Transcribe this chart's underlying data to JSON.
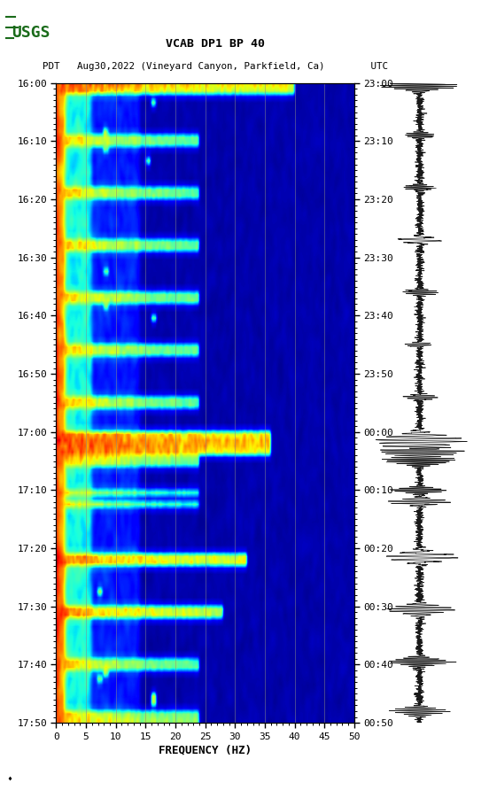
{
  "title_line1": "VCAB DP1 BP 40",
  "title_line2": "PDT   Aug30,2022 (Vineyard Canyon, Parkfield, Ca)        UTC",
  "xlabel": "FREQUENCY (HZ)",
  "freq_min": 0,
  "freq_max": 50,
  "freq_ticks": [
    0,
    5,
    10,
    15,
    20,
    25,
    30,
    35,
    40,
    45,
    50
  ],
  "time_labels_left": [
    "16:00",
    "16:10",
    "16:20",
    "16:30",
    "16:40",
    "16:50",
    "17:00",
    "17:10",
    "17:20",
    "17:30",
    "17:40",
    "17:50"
  ],
  "time_labels_right": [
    "23:00",
    "23:10",
    "23:20",
    "23:30",
    "23:40",
    "23:50",
    "00:00",
    "00:10",
    "00:20",
    "00:30",
    "00:40",
    "00:50"
  ],
  "n_time_steps": 110,
  "n_freq_bins": 250,
  "background_color": "#ffffff",
  "colormap": "jet",
  "vline_color": "#888888",
  "vline_positions": [
    5,
    10,
    15,
    20,
    25,
    30,
    35,
    40,
    45
  ],
  "figure_width": 5.52,
  "figure_height": 8.92,
  "usgs_color": "#1a6b1a"
}
